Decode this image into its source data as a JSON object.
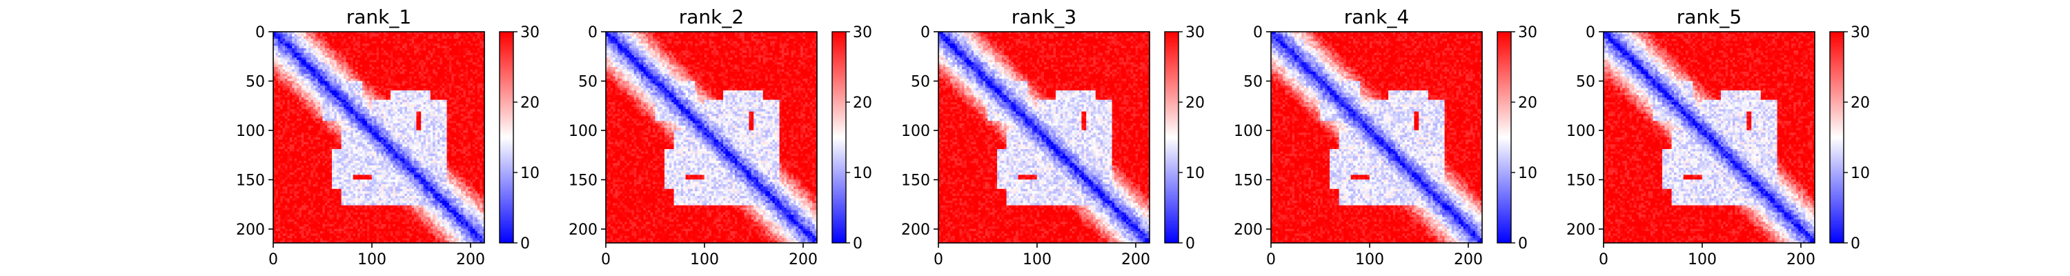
{
  "figure": {
    "colormap": [
      "#0000ff",
      "#ffffff",
      "#ff0000"
    ]
  },
  "chart_data": [
    {
      "type": "heatmap",
      "title": "rank_1",
      "x_ticks": [
        "0",
        "100",
        "200"
      ],
      "y_ticks": [
        "0",
        "50",
        "100",
        "150",
        "200"
      ],
      "xlim": [
        0,
        214
      ],
      "ylim": [
        214,
        0
      ],
      "matrix_size": 214,
      "colorbar": {
        "ticks": [
          "0",
          "10",
          "20",
          "30"
        ],
        "range": [
          0,
          30
        ]
      },
      "low_value_blocks": [
        [
          50,
          90,
          70,
          90
        ],
        [
          100,
          145,
          70,
          150
        ],
        [
          150,
          175,
          70,
          160
        ],
        [
          60,
          80,
          120,
          160
        ]
      ]
    },
    {
      "type": "heatmap",
      "title": "rank_2",
      "x_ticks": [
        "0",
        "100",
        "200"
      ],
      "y_ticks": [
        "0",
        "50",
        "100",
        "150",
        "200"
      ],
      "xlim": [
        0,
        214
      ],
      "ylim": [
        214,
        0
      ],
      "matrix_size": 214,
      "colorbar": {
        "ticks": [
          "0",
          "10",
          "20",
          "30"
        ],
        "range": [
          0,
          30
        ]
      },
      "low_value_blocks": [
        [
          50,
          90,
          70,
          90
        ],
        [
          100,
          145,
          70,
          150
        ],
        [
          150,
          175,
          70,
          160
        ],
        [
          60,
          80,
          120,
          160
        ]
      ]
    },
    {
      "type": "heatmap",
      "title": "rank_3",
      "x_ticks": [
        "0",
        "100",
        "200"
      ],
      "y_ticks": [
        "0",
        "50",
        "100",
        "150",
        "200"
      ],
      "xlim": [
        0,
        214
      ],
      "ylim": [
        214,
        0
      ],
      "matrix_size": 214,
      "colorbar": {
        "ticks": [
          "0",
          "10",
          "20",
          "30"
        ],
        "range": [
          0,
          30
        ]
      },
      "low_value_blocks": [
        [
          50,
          90,
          70,
          90
        ],
        [
          100,
          145,
          70,
          150
        ],
        [
          150,
          175,
          70,
          160
        ],
        [
          60,
          80,
          120,
          160
        ]
      ]
    },
    {
      "type": "heatmap",
      "title": "rank_4",
      "x_ticks": [
        "0",
        "100",
        "200"
      ],
      "y_ticks": [
        "0",
        "50",
        "100",
        "150",
        "200"
      ],
      "xlim": [
        0,
        214
      ],
      "ylim": [
        214,
        0
      ],
      "matrix_size": 214,
      "colorbar": {
        "ticks": [
          "0",
          "10",
          "20",
          "30"
        ],
        "range": [
          0,
          30
        ]
      },
      "low_value_blocks": [
        [
          50,
          90,
          70,
          90
        ],
        [
          100,
          145,
          70,
          150
        ],
        [
          150,
          175,
          70,
          160
        ],
        [
          60,
          80,
          120,
          160
        ]
      ]
    },
    {
      "type": "heatmap",
      "title": "rank_5",
      "x_ticks": [
        "0",
        "100",
        "200"
      ],
      "y_ticks": [
        "0",
        "50",
        "100",
        "150",
        "200"
      ],
      "xlim": [
        0,
        214
      ],
      "ylim": [
        214,
        0
      ],
      "matrix_size": 214,
      "colorbar": {
        "ticks": [
          "0",
          "10",
          "20",
          "30"
        ],
        "range": [
          0,
          30
        ]
      },
      "low_value_blocks": [
        [
          50,
          90,
          70,
          90
        ],
        [
          100,
          145,
          70,
          150
        ],
        [
          150,
          175,
          70,
          160
        ],
        [
          60,
          80,
          120,
          160
        ]
      ]
    }
  ]
}
